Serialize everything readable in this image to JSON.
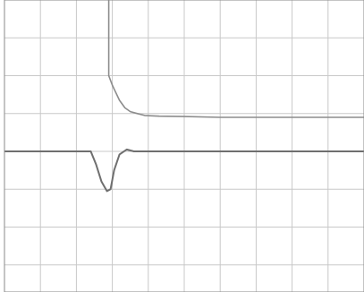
{
  "screen": {
    "channel_label": "",
    "scale_label": "",
    "timebase_label": "",
    "bottom_left_label": "",
    "bottom_mid_label": "",
    "bottom_right_label": ""
  },
  "colors": {
    "background": "#ffffff",
    "grid": "#c8c8c8",
    "frame": "#8a8a8a",
    "trace": "#8c8c8c",
    "baseline": "#6f6f6f"
  },
  "chart_data": {
    "type": "line",
    "grid": true,
    "xlim": [
      0,
      10
    ],
    "ylim": [
      -4,
      4
    ],
    "x_divisions": 10,
    "y_divisions": 8,
    "series": [
      {
        "x": [
          2.9,
          2.9,
          3.0,
          3.2,
          3.35,
          3.5,
          3.7,
          3.9,
          4.3,
          5.0,
          6.0,
          7.0,
          8.0,
          9.0,
          10.0
        ],
        "y": [
          4.0,
          2.0,
          1.75,
          1.35,
          1.15,
          1.05,
          1.0,
          0.95,
          0.93,
          0.92,
          0.9,
          0.9,
          0.9,
          0.9,
          0.9
        ]
      },
      {
        "x": [
          0.0,
          2.4,
          2.55,
          2.7,
          2.85,
          2.95,
          3.05,
          3.2,
          3.4,
          3.6,
          10.0
        ],
        "y": [
          0.0,
          0.0,
          -0.35,
          -0.8,
          -1.05,
          -1.0,
          -0.5,
          -0.08,
          0.05,
          0.0,
          0.0
        ]
      }
    ]
  }
}
